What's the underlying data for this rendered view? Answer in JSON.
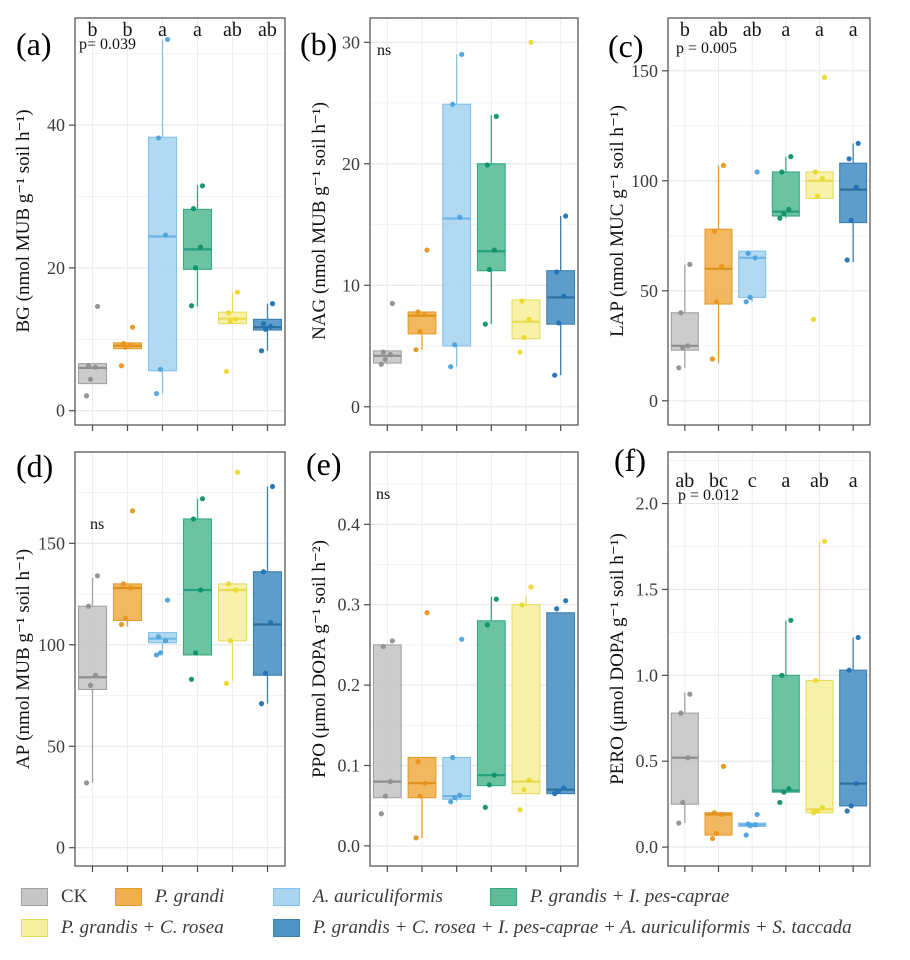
{
  "treatments": [
    {
      "name": "CK",
      "fill": "#c6c6c6",
      "stroke": "#a2a2a2",
      "median": "#8f8f8f",
      "point": "#8f8f8f"
    },
    {
      "name": "P. grandi",
      "fill": "#f1b04e",
      "stroke": "#e49c2c",
      "median": "#dd921a",
      "point": "#e8951c"
    },
    {
      "name": "A. auriculiformis",
      "fill": "#a9d5f0",
      "stroke": "#85c1e8",
      "median": "#6fb6e4",
      "point": "#4da3dc"
    },
    {
      "name": "P. grandis + I. pes-caprae",
      "fill": "#5cbd98",
      "stroke": "#35a983",
      "median": "#27a07c",
      "point": "#0f9168"
    },
    {
      "name": "P. grandis + C. rosea",
      "fill": "#f6f19e",
      "stroke": "#e6dc64",
      "median": "#e8dc52",
      "point": "#ecd92e"
    },
    {
      "name": "P. grandis + C. rosea + I. pes-caprae + A. auriculiformis + S. taccada",
      "fill": "#4d92c5",
      "stroke": "#3c7fb1",
      "median": "#2d6f9e",
      "point": "#2272b4"
    }
  ],
  "legend": {
    "items": [
      {
        "label": "CK",
        "italic": false,
        "treatment": 0
      },
      {
        "label": "P. grandi",
        "italic": true,
        "treatment": 1
      },
      {
        "label": "A. auriculiformis",
        "italic": true,
        "treatment": 2
      },
      {
        "label": "P. grandis + I. pes-caprae",
        "italic": true,
        "treatment": 3
      },
      {
        "label": "P. grandis + C. rosea",
        "italic": true,
        "treatment": 4
      },
      {
        "label": "P. grandis + C. rosea + I. pes-caprae + A. auriculiformis + S. taccada",
        "italic": true,
        "treatment": 5
      }
    ]
  },
  "chart_data": [
    {
      "id": "a",
      "type": "boxplot",
      "panel_label": "(a)",
      "ylabel": "BG (nmol MUB g⁻¹ soil h⁻¹)",
      "p_label": "p= 0.039",
      "letters": [
        "b",
        "b",
        "a",
        "a",
        "ab",
        "ab"
      ],
      "ylim": [
        -2,
        55
      ],
      "yticks": [
        {
          "v": 0,
          "label": "0"
        },
        {
          "v": 20,
          "label": "20"
        },
        {
          "v": 40,
          "label": "40"
        }
      ],
      "groups": [
        {
          "lo": 3.8,
          "q1": 3.8,
          "med": 6.0,
          "q3": 6.6,
          "hi": 6.6,
          "points": [
            2.1,
            4.4,
            6.1,
            6.3,
            14.6
          ]
        },
        {
          "lo": 8.7,
          "q1": 8.7,
          "med": 9.1,
          "q3": 9.5,
          "hi": 9.5,
          "points": [
            6.3,
            8.9,
            9.2,
            9.4,
            11.7
          ]
        },
        {
          "lo": 2.4,
          "q1": 5.6,
          "med": 24.4,
          "q3": 38.3,
          "hi": 52.0,
          "points": [
            2.4,
            5.8,
            24.6,
            38.2,
            52.0
          ]
        },
        {
          "lo": 14.6,
          "q1": 19.8,
          "med": 22.6,
          "q3": 28.2,
          "hi": 31.6,
          "points": [
            14.7,
            20.0,
            22.9,
            28.3,
            31.5
          ]
        },
        {
          "lo": 12.2,
          "q1": 12.2,
          "med": 12.9,
          "q3": 13.8,
          "hi": 16.6,
          "points": [
            5.5,
            12.5,
            12.8,
            13.7,
            16.6
          ]
        },
        {
          "lo": 8.4,
          "q1": 11.3,
          "med": 11.7,
          "q3": 12.8,
          "hi": 15.0,
          "points": [
            8.4,
            11.4,
            11.8,
            12.2,
            15.0
          ]
        }
      ]
    },
    {
      "id": "b",
      "type": "boxplot",
      "panel_label": "(b)",
      "ylabel": "NAG (nmol MUB g⁻¹ soil h⁻¹)",
      "sig_label": "ns",
      "letters": null,
      "ylim": [
        -1.5,
        32
      ],
      "yticks": [
        {
          "v": 0,
          "label": "0"
        },
        {
          "v": 10,
          "label": "10"
        },
        {
          "v": 20,
          "label": "20"
        },
        {
          "v": 30,
          "label": "30"
        }
      ],
      "groups": [
        {
          "lo": 3.5,
          "q1": 3.6,
          "med": 4.2,
          "q3": 4.6,
          "hi": 4.6,
          "points": [
            3.5,
            3.9,
            4.3,
            4.5,
            8.5
          ]
        },
        {
          "lo": 4.7,
          "q1": 6.0,
          "med": 7.5,
          "q3": 7.8,
          "hi": 7.8,
          "points": [
            4.7,
            6.2,
            7.6,
            7.8,
            12.9
          ]
        },
        {
          "lo": 3.3,
          "q1": 5.0,
          "med": 15.5,
          "q3": 24.9,
          "hi": 29.0,
          "points": [
            3.3,
            5.1,
            15.6,
            24.9,
            29.0
          ]
        },
        {
          "lo": 6.8,
          "q1": 11.2,
          "med": 12.8,
          "q3": 20.0,
          "hi": 24.0,
          "points": [
            6.8,
            11.3,
            12.9,
            19.9,
            23.9
          ]
        },
        {
          "lo": 5.6,
          "q1": 5.6,
          "med": 7.0,
          "q3": 8.8,
          "hi": 8.8,
          "points": [
            4.5,
            5.7,
            7.2,
            8.7,
            30.0
          ]
        },
        {
          "lo": 2.6,
          "q1": 6.8,
          "med": 9.0,
          "q3": 11.2,
          "hi": 15.7,
          "points": [
            2.6,
            6.9,
            9.1,
            11.1,
            15.7
          ]
        }
      ]
    },
    {
      "id": "c",
      "type": "boxplot",
      "panel_label": "(c)",
      "ylabel": "LAP (nmol MUC g⁻¹ soil h⁻¹)",
      "p_label": "p = 0.005",
      "letters": [
        "b",
        "ab",
        "ab",
        "a",
        "a",
        "a"
      ],
      "ylim": [
        -11,
        174
      ],
      "yticks": [
        {
          "v": 0,
          "label": "0"
        },
        {
          "v": 50,
          "label": "50"
        },
        {
          "v": 100,
          "label": "100"
        },
        {
          "v": 150,
          "label": "150"
        }
      ],
      "groups": [
        {
          "lo": 15,
          "q1": 23,
          "med": 25,
          "q3": 40,
          "hi": 62,
          "points": [
            15,
            24,
            25,
            40,
            62
          ]
        },
        {
          "lo": 17,
          "q1": 44,
          "med": 60,
          "q3": 78,
          "hi": 107,
          "points": [
            19,
            45,
            61,
            77,
            107
          ]
        },
        {
          "lo": 45,
          "q1": 47,
          "med": 65,
          "q3": 68,
          "hi": 68,
          "points": [
            45,
            47,
            65,
            67,
            104
          ]
        },
        {
          "lo": 83,
          "q1": 84,
          "med": 86,
          "q3": 104,
          "hi": 111,
          "points": [
            83,
            85,
            87,
            104,
            111
          ]
        },
        {
          "lo": 92,
          "q1": 92,
          "med": 100,
          "q3": 104,
          "hi": 104,
          "points": [
            37,
            93,
            101,
            104,
            147
          ]
        },
        {
          "lo": 63,
          "q1": 81,
          "med": 96,
          "q3": 108,
          "hi": 117,
          "points": [
            64,
            82,
            97,
            110,
            117
          ]
        }
      ]
    },
    {
      "id": "d",
      "type": "boxplot",
      "panel_label": "(d)",
      "ylabel": "AP (nmol MUB g⁻¹ soil h⁻¹)",
      "sig_label": "ns",
      "letters": null,
      "ylim": [
        -9,
        195
      ],
      "yticks": [
        {
          "v": 0,
          "label": "0"
        },
        {
          "v": 50,
          "label": "50"
        },
        {
          "v": 100,
          "label": "100"
        },
        {
          "v": 150,
          "label": "150"
        }
      ],
      "groups": [
        {
          "lo": 32,
          "q1": 78,
          "med": 84,
          "q3": 119,
          "hi": 133,
          "points": [
            32,
            80,
            85,
            119,
            134
          ]
        },
        {
          "lo": 109,
          "q1": 112,
          "med": 128,
          "q3": 130,
          "hi": 130,
          "points": [
            110,
            113,
            128,
            130,
            166
          ]
        },
        {
          "lo": 96,
          "q1": 101,
          "med": 103,
          "q3": 106,
          "hi": 106,
          "points": [
            95,
            96,
            102,
            104,
            122
          ]
        },
        {
          "lo": 95,
          "q1": 95,
          "med": 127,
          "q3": 162,
          "hi": 172,
          "points": [
            83,
            96,
            127,
            162,
            172
          ]
        },
        {
          "lo": 82,
          "q1": 102,
          "med": 127,
          "q3": 130,
          "hi": 130,
          "points": [
            81,
            102,
            127,
            130,
            185
          ]
        },
        {
          "lo": 71,
          "q1": 85,
          "med": 110,
          "q3": 136,
          "hi": 178,
          "points": [
            71,
            86,
            111,
            136,
            178
          ]
        }
      ]
    },
    {
      "id": "e",
      "type": "boxplot",
      "panel_label": "(e)",
      "ylabel": "PPO (μmol DOPA g⁻¹ soil h⁻²)",
      "sig_label": "ns",
      "letters": null,
      "ylim": [
        -0.025,
        0.49
      ],
      "yticks": [
        {
          "v": 0,
          "label": "0.0"
        },
        {
          "v": 0.1,
          "label": "0.1"
        },
        {
          "v": 0.2,
          "label": "0.2"
        },
        {
          "v": 0.3,
          "label": "0.3"
        },
        {
          "v": 0.4,
          "label": "0.4"
        }
      ],
      "groups": [
        {
          "lo": 0.06,
          "q1": 0.06,
          "med": 0.08,
          "q3": 0.25,
          "hi": 0.25,
          "points": [
            0.04,
            0.062,
            0.08,
            0.248,
            0.255
          ]
        },
        {
          "lo": 0.01,
          "q1": 0.06,
          "med": 0.078,
          "q3": 0.11,
          "hi": 0.11,
          "points": [
            0.01,
            0.062,
            0.078,
            0.105,
            0.29
          ]
        },
        {
          "lo": 0.055,
          "q1": 0.058,
          "med": 0.062,
          "q3": 0.11,
          "hi": 0.11,
          "points": [
            0.055,
            0.06,
            0.063,
            0.11,
            0.257
          ]
        },
        {
          "lo": 0.075,
          "q1": 0.075,
          "med": 0.088,
          "q3": 0.28,
          "hi": 0.31,
          "points": [
            0.048,
            0.076,
            0.088,
            0.275,
            0.307
          ]
        },
        {
          "lo": 0.065,
          "q1": 0.065,
          "med": 0.08,
          "q3": 0.3,
          "hi": 0.31,
          "points": [
            0.045,
            0.07,
            0.082,
            0.3,
            0.322
          ]
        },
        {
          "lo": 0.065,
          "q1": 0.065,
          "med": 0.07,
          "q3": 0.29,
          "hi": 0.29,
          "points": [
            0.065,
            0.068,
            0.072,
            0.295,
            0.305
          ]
        }
      ]
    },
    {
      "id": "f",
      "type": "boxplot",
      "panel_label": "(f)",
      "ylabel": "PERO (μmol DOPA g⁻¹ soil h⁻¹)",
      "p_label": "p = 0.012",
      "letters": [
        "ab",
        "bc",
        "c",
        "a",
        "ab",
        "a"
      ],
      "ylim": [
        -0.11,
        2.3
      ],
      "yticks": [
        {
          "v": 0,
          "label": "0.0"
        },
        {
          "v": 0.5,
          "label": "0.5"
        },
        {
          "v": 1,
          "label": "1.0"
        },
        {
          "v": 1.5,
          "label": "1.5"
        },
        {
          "v": 2,
          "label": "2.0"
        }
      ],
      "groups": [
        {
          "lo": 0.14,
          "q1": 0.25,
          "med": 0.52,
          "q3": 0.78,
          "hi": 0.9,
          "points": [
            0.14,
            0.26,
            0.52,
            0.78,
            0.89
          ]
        },
        {
          "lo": 0.07,
          "q1": 0.07,
          "med": 0.19,
          "q3": 0.2,
          "hi": 0.2,
          "points": [
            0.05,
            0.08,
            0.19,
            0.2,
            0.47
          ]
        },
        {
          "lo": 0.12,
          "q1": 0.12,
          "med": 0.13,
          "q3": 0.14,
          "hi": 0.14,
          "points": [
            0.07,
            0.125,
            0.13,
            0.135,
            0.19
          ]
        },
        {
          "lo": 0.32,
          "q1": 0.32,
          "med": 0.33,
          "q3": 1.0,
          "hi": 1.32,
          "points": [
            0.26,
            0.32,
            0.34,
            1.0,
            1.32
          ]
        },
        {
          "lo": 0.2,
          "q1": 0.2,
          "med": 0.22,
          "q3": 0.97,
          "hi": 1.78,
          "points": [
            0.2,
            0.21,
            0.23,
            0.97,
            1.78
          ]
        },
        {
          "lo": 0.24,
          "q1": 0.24,
          "med": 0.37,
          "q3": 1.03,
          "hi": 1.22,
          "points": [
            0.21,
            0.24,
            0.37,
            1.03,
            1.22
          ]
        }
      ]
    }
  ]
}
